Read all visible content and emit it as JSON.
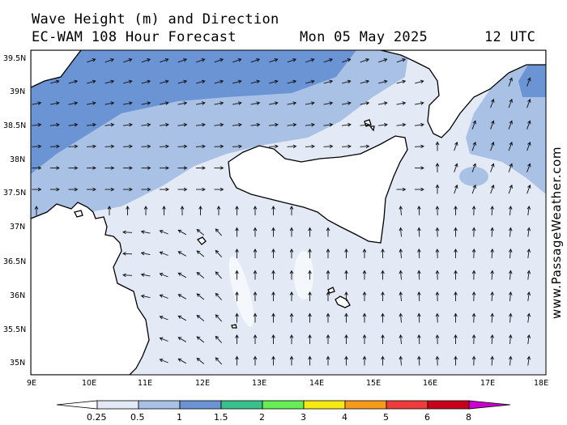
{
  "header": {
    "title": "Wave Height (m) and Direction",
    "model": "EC-WAM 108 Hour Forecast",
    "date": "Mon 05 May 2025",
    "time": "12 UTC"
  },
  "credit": "www.PassageWeather.com",
  "axes": {
    "x_ticks": [
      "9E",
      "10E",
      "11E",
      "12E",
      "13E",
      "14E",
      "15E",
      "16E",
      "17E",
      "18E"
    ],
    "y_ticks": [
      "39.5N",
      "39N",
      "38.5N",
      "38N",
      "37.5N",
      "37N",
      "36.5N",
      "36N",
      "35.5N",
      "35N"
    ]
  },
  "legend": {
    "unit": "m",
    "labels": [
      "0.25",
      "0.5",
      "1",
      "1.5",
      "2",
      "3",
      "4",
      "5",
      "6",
      "8"
    ],
    "colors": [
      "#e3eaf6",
      "#a9c1e4",
      "#6a94d4",
      "#38c18d",
      "#66ee55",
      "#f6ea12",
      "#f79a1c",
      "#ee3b3b",
      "#c8001c",
      "#cc00cc"
    ]
  },
  "map": {
    "region": "Central Mediterranean - Sicily, Malta, Tunisia",
    "land_color": "#ffffff",
    "sea_low_color": "#e3eaf6",
    "sea_mid_color": "#a9c1e4",
    "sea_high_color": "#6a94d4"
  }
}
